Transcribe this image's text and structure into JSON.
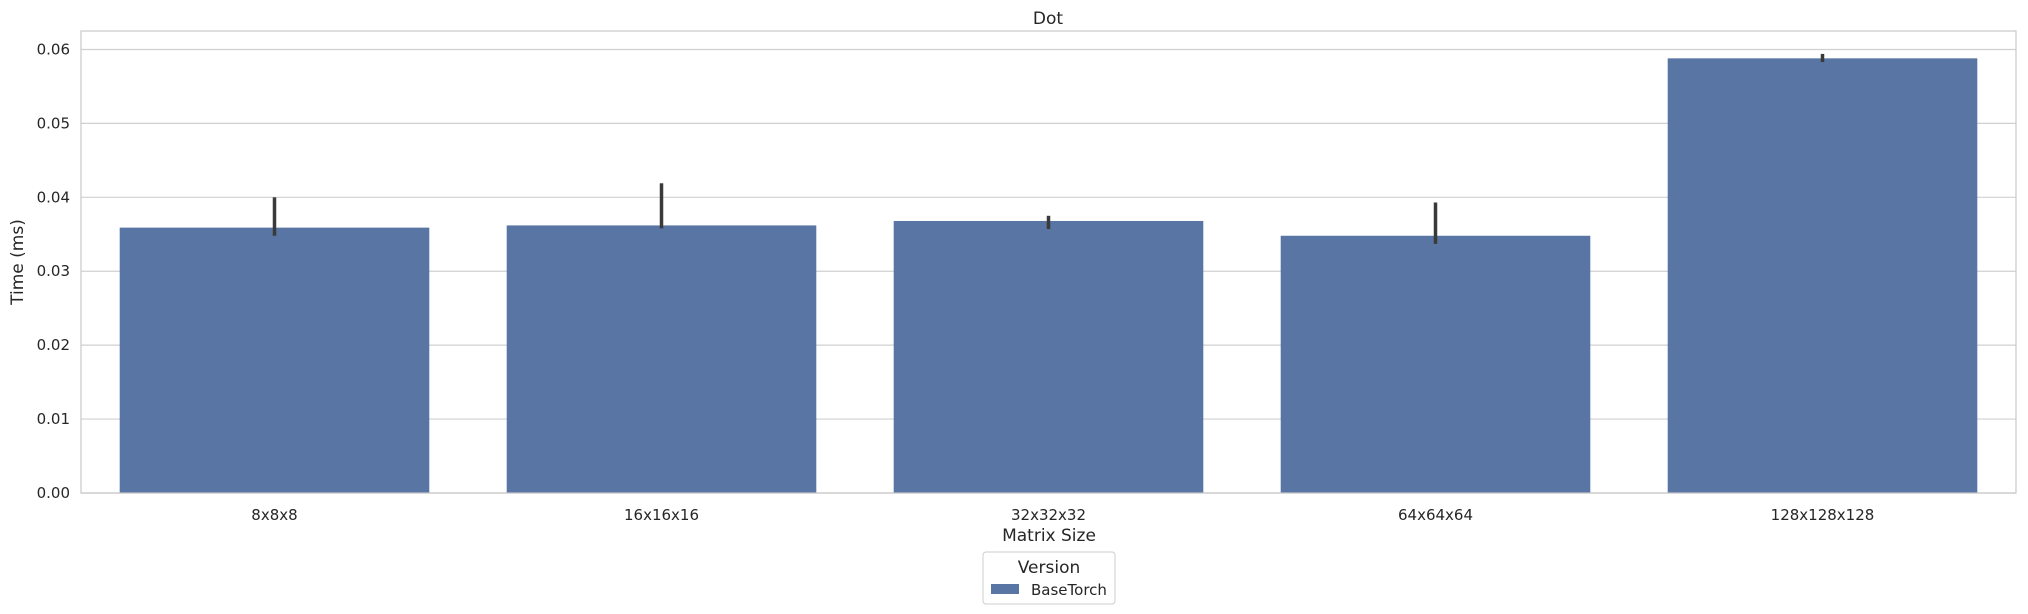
{
  "chart_data": {
    "type": "bar",
    "title": "Dot",
    "xlabel": "Matrix Size",
    "ylabel": "Time (ms)",
    "categories": [
      "8x8x8",
      "16x16x16",
      "32x32x32",
      "64x64x64",
      "128x128x128"
    ],
    "series": [
      {
        "name": "BaseTorch",
        "color": "#5975a4",
        "values": [
          0.0359,
          0.0362,
          0.0368,
          0.0348,
          0.0588
        ],
        "error_low": [
          0.0348,
          0.0358,
          0.0357,
          0.0337,
          0.0583
        ],
        "error_high": [
          0.04,
          0.0419,
          0.0375,
          0.0393,
          0.0594
        ]
      }
    ],
    "ylim": [
      0,
      0.0625
    ],
    "yticks": [
      0.0,
      0.01,
      0.02,
      0.03,
      0.04,
      0.05,
      0.06
    ],
    "ytick_labels": [
      "0.00",
      "0.01",
      "0.02",
      "0.03",
      "0.04",
      "0.05",
      "0.06"
    ],
    "grid": "y",
    "legend": {
      "title": "Version",
      "placement": "bottom-center"
    },
    "error_bar_color": "#3a3a3a",
    "grid_color": "#d0d0d0",
    "frame_color": "#c8c8c8"
  }
}
